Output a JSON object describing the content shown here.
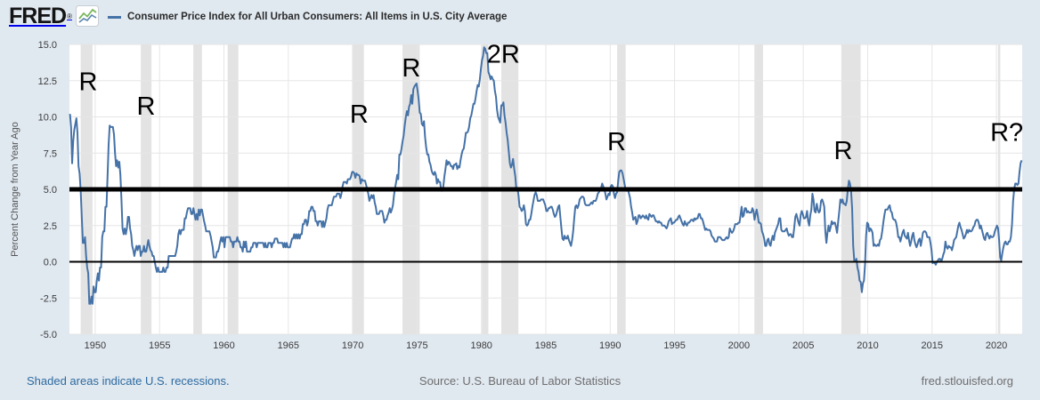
{
  "header": {
    "logo_text": "FRED",
    "registered_mark": "®"
  },
  "footer": {
    "recessions_note": "Shaded areas indicate U.S. recessions.",
    "source": "Source: U.S. Bureau of Labor Statistics",
    "site": "fred.stlouisfed.org"
  },
  "colors": {
    "background": "#e0e8f0",
    "plot_background": "#ffffff",
    "line": "#4572a7",
    "recession_band": "#e3e3e3",
    "gridline": "#e6e6e6",
    "reference_line": "#000000",
    "tick_text": "#3c3c3c",
    "footer_link": "#2d6a9f",
    "footer_text": "#6e6e6e",
    "logo_icon_green": "#79b75d",
    "logo_icon_blue": "#5b84b0"
  },
  "chart_data": {
    "type": "line",
    "title": "Consumer Price Index for All Urban Consumers: All Items in U.S. City Average",
    "ylabel": "Percent Change from Year Ago",
    "xlabel": "",
    "x_domain": [
      1948,
      2022
    ],
    "y_domain": [
      -5.0,
      15.0
    ],
    "x_ticks": [
      1950,
      1955,
      1960,
      1965,
      1970,
      1975,
      1980,
      1985,
      1990,
      1995,
      2000,
      2005,
      2010,
      2015,
      2020
    ],
    "y_ticks": [
      -5.0,
      -2.5,
      0.0,
      2.5,
      5.0,
      7.5,
      10.0,
      12.5,
      15.0
    ],
    "grid": true,
    "legend_position": "top-left",
    "reference_lines": [
      {
        "value": 5.0,
        "stroke_width": 5
      },
      {
        "value": 0.0,
        "stroke_width": 2
      }
    ],
    "annotations": [
      {
        "label": "R",
        "year": 1949.45,
        "value": 12.4
      },
      {
        "label": "R",
        "year": 1953.95,
        "value": 10.7
      },
      {
        "label": "R",
        "year": 1970.5,
        "value": 10.15
      },
      {
        "label": "R",
        "year": 1974.55,
        "value": 13.35
      },
      {
        "label": "2R",
        "year": 1981.7,
        "value": 14.3
      },
      {
        "label": "R",
        "year": 1990.5,
        "value": 8.25
      },
      {
        "label": "R",
        "year": 2008.1,
        "value": 7.65
      },
      {
        "label": "R?",
        "year": 2020.8,
        "value": 8.9
      }
    ],
    "recessions": [
      [
        1948.87,
        1949.79
      ],
      [
        1953.54,
        1954.37
      ],
      [
        1957.62,
        1958.29
      ],
      [
        1960.29,
        1961.12
      ],
      [
        1969.95,
        1970.87
      ],
      [
        1973.87,
        1975.2
      ],
      [
        1980.04,
        1980.54
      ],
      [
        1981.54,
        1982.87
      ],
      [
        1990.54,
        1991.2
      ],
      [
        2001.2,
        2001.87
      ],
      [
        2007.95,
        2009.45
      ],
      [
        2020.12,
        2020.3
      ]
    ],
    "series": {
      "frequency": "monthly",
      "start_year": 1948,
      "units": "percent change from year ago",
      "values_by_year": [
        [
          10.2,
          9.3,
          6.8,
          8.3,
          9.1,
          9.5,
          9.9,
          8.9,
          6.6,
          6.1,
          4.8,
          3.0
        ],
        [
          1.3,
          1.3,
          1.7,
          0.4,
          -0.4,
          -0.8,
          -2.9,
          -2.9,
          -2.4,
          -2.9,
          -1.7,
          -2.1
        ],
        [
          -2.1,
          -1.3,
          -0.8,
          -1.3,
          -0.4,
          -0.4,
          1.7,
          2.1,
          2.1,
          3.8,
          3.8,
          5.9
        ],
        [
          8.1,
          9.4,
          9.3,
          9.3,
          9.3,
          8.8,
          7.5,
          6.6,
          7.0,
          6.5,
          6.9,
          6.0
        ],
        [
          4.3,
          2.3,
          1.9,
          2.3,
          1.9,
          2.3,
          3.1,
          3.1,
          2.3,
          1.9,
          1.1,
          0.8
        ],
        [
          0.4,
          0.8,
          1.1,
          0.8,
          1.1,
          1.1,
          0.4,
          0.7,
          0.7,
          1.1,
          0.7,
          0.7
        ],
        [
          1.1,
          1.5,
          1.1,
          0.8,
          0.7,
          0.4,
          0.4,
          0.0,
          -0.4,
          -0.7,
          -0.4,
          -0.7
        ],
        [
          -0.7,
          -0.7,
          -0.7,
          -0.4,
          -0.7,
          -0.7,
          -0.4,
          -0.4,
          0.4,
          0.4,
          0.4,
          0.4
        ],
        [
          0.4,
          0.4,
          0.4,
          0.7,
          1.1,
          1.9,
          2.2,
          1.9,
          2.2,
          2.2,
          2.2,
          3.0
        ],
        [
          3.0,
          3.4,
          3.7,
          3.7,
          3.7,
          3.3,
          3.3,
          3.7,
          3.3,
          2.9,
          3.3,
          2.9
        ],
        [
          3.6,
          3.2,
          3.6,
          3.6,
          3.2,
          2.8,
          2.5,
          2.1,
          2.1,
          2.1,
          2.1,
          1.8
        ],
        [
          1.4,
          1.0,
          0.3,
          0.3,
          0.3,
          0.7,
          0.7,
          1.0,
          1.4,
          1.7,
          1.4,
          1.7
        ],
        [
          1.0,
          1.7,
          1.7,
          1.7,
          1.7,
          1.7,
          1.4,
          1.4,
          1.0,
          1.4,
          1.4,
          1.4
        ],
        [
          1.7,
          1.4,
          1.4,
          1.0,
          1.0,
          0.7,
          1.4,
          1.0,
          1.4,
          0.7,
          0.7,
          0.7
        ],
        [
          0.7,
          1.0,
          1.0,
          1.3,
          1.3,
          1.3,
          1.0,
          1.3,
          1.3,
          1.3,
          1.3,
          1.3
        ],
        [
          1.3,
          1.0,
          1.3,
          1.0,
          1.0,
          1.3,
          1.3,
          1.3,
          1.0,
          1.3,
          1.3,
          1.6
        ],
        [
          1.6,
          1.6,
          1.3,
          1.3,
          1.3,
          1.3,
          1.3,
          1.0,
          1.3,
          1.0,
          1.3,
          1.0
        ],
        [
          1.0,
          1.0,
          1.3,
          1.6,
          1.6,
          1.9,
          1.6,
          1.9,
          1.6,
          1.9,
          1.6,
          1.9
        ],
        [
          1.9,
          2.6,
          2.6,
          2.9,
          2.9,
          2.5,
          2.8,
          3.5,
          3.5,
          3.8,
          3.8,
          3.5
        ],
        [
          3.5,
          2.8,
          2.8,
          2.5,
          2.8,
          2.8,
          2.8,
          2.4,
          2.8,
          2.4,
          2.7,
          3.0
        ],
        [
          3.6,
          3.9,
          3.9,
          3.9,
          3.9,
          4.2,
          4.5,
          4.5,
          4.5,
          4.7,
          4.7,
          4.7
        ],
        [
          4.4,
          4.7,
          5.2,
          5.5,
          5.5,
          5.5,
          5.4,
          5.7,
          5.7,
          5.7,
          5.9,
          6.2
        ],
        [
          6.2,
          6.1,
          5.8,
          6.1,
          6.0,
          6.0,
          5.9,
          5.4,
          5.7,
          5.6,
          5.6,
          5.6
        ],
        [
          5.3,
          5.0,
          4.7,
          4.2,
          4.4,
          4.6,
          4.4,
          4.6,
          4.1,
          3.8,
          3.3,
          3.3
        ],
        [
          3.3,
          3.5,
          3.5,
          3.5,
          3.2,
          2.7,
          2.9,
          2.9,
          3.2,
          3.4,
          3.7,
          3.4
        ],
        [
          3.6,
          3.9,
          4.6,
          5.1,
          5.5,
          6.0,
          5.7,
          7.4,
          7.4,
          7.8,
          8.3,
          8.7
        ],
        [
          9.4,
          10.0,
          10.4,
          10.1,
          10.7,
          10.9,
          11.5,
          10.9,
          11.9,
          12.1,
          12.2,
          12.3
        ],
        [
          11.8,
          11.2,
          10.3,
          10.2,
          9.5,
          9.4,
          9.7,
          8.6,
          7.9,
          7.4,
          7.4,
          6.9
        ],
        [
          6.7,
          6.3,
          6.1,
          6.0,
          6.2,
          6.0,
          5.4,
          5.7,
          5.5,
          5.5,
          4.9,
          4.9
        ],
        [
          5.2,
          5.9,
          6.4,
          7.0,
          6.7,
          6.9,
          6.8,
          6.6,
          6.6,
          6.4,
          6.7,
          6.7
        ],
        [
          6.8,
          6.4,
          6.6,
          6.5,
          7.0,
          7.4,
          7.7,
          7.8,
          8.3,
          8.9,
          8.9,
          9.0
        ],
        [
          9.3,
          9.9,
          10.1,
          10.5,
          10.9,
          10.9,
          11.3,
          11.8,
          12.2,
          12.1,
          12.6,
          13.3
        ],
        [
          13.9,
          14.2,
          14.8,
          14.7,
          14.4,
          14.4,
          13.1,
          12.9,
          12.6,
          12.8,
          12.6,
          12.5
        ],
        [
          11.8,
          11.4,
          10.5,
          10.0,
          9.8,
          9.6,
          10.8,
          10.8,
          11.0,
          10.1,
          9.6,
          8.9
        ],
        [
          8.4,
          7.6,
          6.8,
          6.5,
          6.7,
          7.1,
          6.4,
          5.9,
          5.0,
          5.1,
          4.6,
          3.8
        ],
        [
          3.7,
          3.5,
          3.6,
          3.9,
          3.5,
          2.6,
          2.5,
          2.6,
          2.9,
          2.9,
          3.3,
          3.8
        ],
        [
          4.2,
          4.6,
          4.8,
          4.6,
          4.2,
          4.2,
          4.2,
          4.3,
          4.3,
          4.3,
          4.1,
          3.9
        ],
        [
          3.5,
          3.5,
          3.7,
          3.7,
          3.8,
          3.8,
          3.6,
          3.3,
          3.1,
          3.2,
          3.5,
          3.8
        ],
        [
          3.9,
          3.1,
          2.3,
          1.6,
          1.5,
          1.8,
          1.6,
          1.6,
          1.8,
          1.5,
          1.3,
          1.1
        ],
        [
          1.5,
          2.1,
          3.0,
          3.8,
          3.9,
          3.7,
          3.9,
          4.3,
          4.4,
          4.5,
          4.5,
          4.4
        ],
        [
          4.0,
          3.9,
          3.9,
          3.9,
          3.9,
          4.0,
          4.1,
          4.0,
          4.2,
          4.2,
          4.2,
          4.4
        ],
        [
          4.7,
          4.8,
          5.0,
          5.1,
          5.4,
          5.2,
          5.0,
          4.7,
          4.3,
          4.5,
          4.7,
          4.6
        ],
        [
          5.2,
          5.3,
          5.2,
          4.7,
          4.4,
          4.7,
          4.8,
          5.6,
          6.2,
          6.3,
          6.3,
          6.1
        ],
        [
          5.7,
          5.3,
          4.9,
          4.9,
          5.0,
          4.7,
          4.4,
          3.8,
          3.4,
          2.9,
          3.0,
          3.1
        ],
        [
          2.6,
          2.8,
          3.2,
          3.2,
          3.0,
          3.1,
          3.2,
          3.1,
          3.0,
          3.2,
          3.0,
          2.9
        ],
        [
          3.3,
          3.2,
          3.1,
          3.2,
          3.2,
          3.0,
          2.8,
          2.8,
          2.7,
          2.8,
          2.7,
          2.7
        ],
        [
          2.5,
          2.5,
          2.5,
          2.4,
          2.3,
          2.5,
          2.8,
          2.9,
          3.0,
          2.6,
          2.7,
          2.7
        ],
        [
          2.8,
          2.9,
          2.9,
          3.1,
          3.2,
          3.0,
          2.8,
          2.6,
          2.5,
          2.8,
          2.6,
          2.5
        ],
        [
          2.7,
          2.7,
          2.8,
          2.9,
          2.9,
          2.8,
          3.0,
          2.9,
          3.0,
          3.0,
          3.3,
          3.3
        ],
        [
          3.0,
          3.0,
          2.8,
          2.5,
          2.2,
          2.3,
          2.2,
          2.2,
          2.2,
          2.1,
          1.8,
          1.7
        ],
        [
          1.6,
          1.4,
          1.4,
          1.4,
          1.7,
          1.7,
          1.7,
          1.6,
          1.5,
          1.5,
          1.5,
          1.6
        ],
        [
          1.7,
          1.6,
          1.7,
          2.3,
          2.1,
          2.0,
          2.1,
          2.3,
          2.6,
          2.6,
          2.6,
          2.7
        ],
        [
          2.7,
          3.2,
          3.8,
          3.1,
          3.2,
          3.7,
          3.7,
          3.4,
          3.5,
          3.4,
          3.4,
          3.4
        ],
        [
          3.7,
          3.5,
          2.9,
          3.3,
          3.6,
          3.2,
          2.7,
          2.7,
          2.6,
          2.1,
          1.9,
          1.6
        ],
        [
          1.1,
          1.1,
          1.5,
          1.6,
          1.2,
          1.1,
          1.5,
          1.8,
          1.5,
          2.0,
          2.2,
          2.4
        ],
        [
          2.6,
          3.0,
          3.0,
          2.2,
          2.1,
          2.1,
          2.1,
          2.2,
          2.3,
          2.0,
          1.8,
          1.9
        ],
        [
          1.9,
          1.7,
          1.7,
          2.3,
          3.1,
          3.3,
          3.0,
          2.7,
          2.5,
          3.2,
          3.5,
          3.3
        ],
        [
          3.0,
          3.0,
          3.1,
          3.5,
          2.8,
          2.5,
          3.2,
          3.6,
          4.7,
          4.3,
          3.5,
          3.4
        ],
        [
          4.0,
          3.6,
          3.4,
          3.5,
          4.2,
          4.3,
          4.1,
          3.8,
          2.1,
          1.3,
          2.0,
          2.5
        ],
        [
          2.1,
          2.4,
          2.8,
          2.6,
          2.7,
          2.7,
          2.4,
          2.0,
          2.8,
          3.5,
          4.3,
          4.1
        ],
        [
          4.3,
          4.0,
          4.0,
          3.9,
          4.2,
          5.0,
          5.6,
          5.4,
          4.9,
          3.7,
          1.1,
          0.1
        ],
        [
          0.0,
          0.2,
          -0.4,
          -0.7,
          -1.3,
          -1.4,
          -2.1,
          -1.5,
          -1.3,
          -0.2,
          1.8,
          2.7
        ],
        [
          2.6,
          2.1,
          2.3,
          2.2,
          2.0,
          1.1,
          1.2,
          1.1,
          1.1,
          1.2,
          1.1,
          1.5
        ],
        [
          1.6,
          2.1,
          2.7,
          3.2,
          3.6,
          3.6,
          3.6,
          3.8,
          3.9,
          3.5,
          3.4,
          3.0
        ],
        [
          2.9,
          2.9,
          2.7,
          2.3,
          1.7,
          1.7,
          1.4,
          1.7,
          2.0,
          2.2,
          1.8,
          1.7
        ],
        [
          1.6,
          2.0,
          1.5,
          1.1,
          1.4,
          1.8,
          2.0,
          1.5,
          1.2,
          1.0,
          1.2,
          1.5
        ],
        [
          1.6,
          1.1,
          1.5,
          2.0,
          2.1,
          2.1,
          2.0,
          1.7,
          1.7,
          1.7,
          1.3,
          0.8
        ],
        [
          -0.1,
          0.0,
          -0.1,
          -0.2,
          0.0,
          0.1,
          0.2,
          0.2,
          0.0,
          0.2,
          0.5,
          0.7
        ],
        [
          1.4,
          1.0,
          0.9,
          1.1,
          1.0,
          1.0,
          0.8,
          1.1,
          1.5,
          1.6,
          1.7,
          2.1
        ],
        [
          2.5,
          2.7,
          2.4,
          2.2,
          1.9,
          1.6,
          1.7,
          1.9,
          2.2,
          2.0,
          2.2,
          2.1
        ],
        [
          2.1,
          2.2,
          2.4,
          2.5,
          2.8,
          2.9,
          2.9,
          2.7,
          2.3,
          2.5,
          2.2,
          1.9
        ],
        [
          1.6,
          1.5,
          1.9,
          2.0,
          1.8,
          1.6,
          1.8,
          1.7,
          1.7,
          1.8,
          2.1,
          2.3
        ],
        [
          2.5,
          2.3,
          1.5,
          0.3,
          0.1,
          0.6,
          1.0,
          1.3,
          1.4,
          1.2,
          1.2,
          1.4
        ],
        [
          1.4,
          1.7,
          2.6,
          4.2,
          5.0,
          5.4,
          5.4,
          5.3,
          5.4,
          6.2,
          6.8,
          7.0
        ]
      ]
    }
  }
}
